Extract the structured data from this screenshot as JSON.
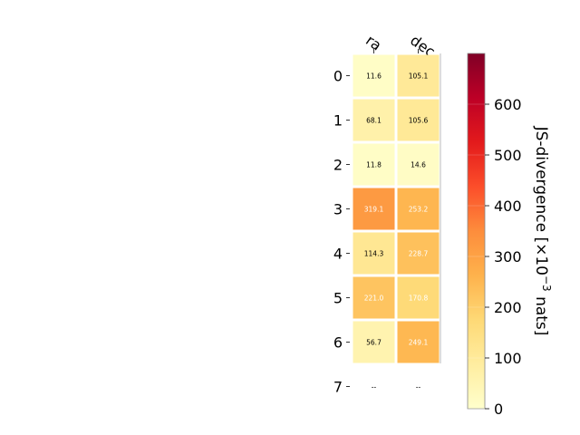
{
  "chart_data": {
    "type": "heatmap",
    "columns": [
      "ra",
      "dec"
    ],
    "rows": [
      "0",
      "1",
      "2",
      "3",
      "4",
      "5",
      "6",
      "7"
    ],
    "values": [
      [
        11.6,
        105.1
      ],
      [
        68.1,
        105.6
      ],
      [
        11.8,
        14.6
      ],
      [
        319.1,
        253.2
      ],
      [
        114.3,
        228.7
      ],
      [
        221.0,
        170.8
      ],
      [
        56.7,
        249.1
      ],
      [
        null,
        null
      ]
    ],
    "cell_labels": [
      [
        "11.6",
        "105.1"
      ],
      [
        "68.1",
        "105.6"
      ],
      [
        "11.8",
        "14.6"
      ],
      [
        "319.1",
        "253.2"
      ],
      [
        "114.3",
        "228.7"
      ],
      [
        "221.0",
        "170.8"
      ],
      [
        "56.7",
        "249.1"
      ],
      [
        "--",
        "--"
      ]
    ],
    "colormap": "YlOrRd",
    "colorbar": {
      "label_prefix": "JS-divergence [×10",
      "label_exponent": "−3",
      "label_suffix": " nats]",
      "ticks": [
        "0",
        "100",
        "200",
        "300",
        "400",
        "500",
        "600"
      ],
      "range": [
        0,
        700
      ]
    }
  }
}
